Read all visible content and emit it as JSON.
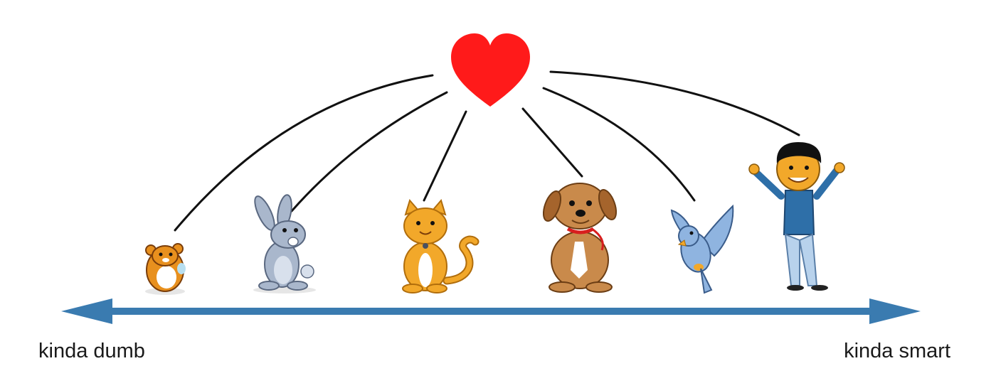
{
  "axis": {
    "left_label": "kinda dumb",
    "right_label": "kinda smart",
    "color": "#3a7bb0"
  },
  "heart": {
    "icon": "heart-icon",
    "color": "#ff1a1a"
  },
  "connector_color": "#111111",
  "figures": [
    {
      "name": "hamster",
      "icon": "hamster-icon",
      "color": "#e8901e"
    },
    {
      "name": "rabbit",
      "icon": "rabbit-icon",
      "color": "#a9b7cc"
    },
    {
      "name": "cat",
      "icon": "cat-icon",
      "color": "#f2a82a"
    },
    {
      "name": "dog",
      "icon": "dog-icon",
      "color": "#c98a4b"
    },
    {
      "name": "bird",
      "icon": "bird-icon",
      "color": "#8fb4e0"
    },
    {
      "name": "person",
      "icon": "person-icon",
      "color": "#2e6fa8"
    }
  ]
}
